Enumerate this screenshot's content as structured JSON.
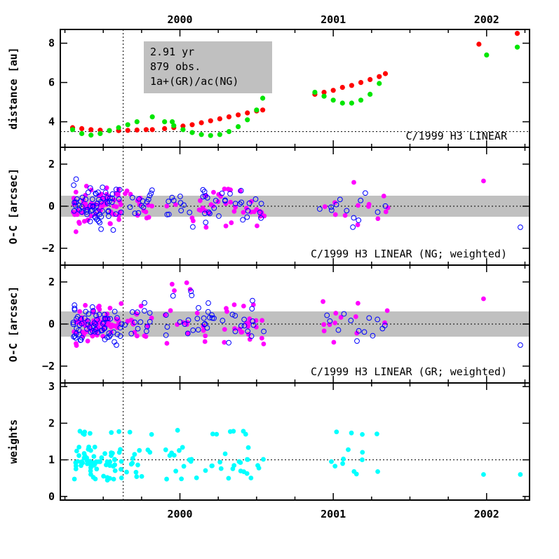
{
  "chart_data": [
    {
      "type": "scatter",
      "ylabel": "distance [au]",
      "ylim": [
        2.7,
        8.7
      ],
      "yticks": [
        4,
        6,
        8
      ],
      "reference_y": 3.5,
      "annotation": "C/1999 H3 LINEAR",
      "info_box": [
        "2.91 yr",
        "879 obs.",
        "1a+(GR)/ac(NG)"
      ],
      "info_box_color": "#c0c0c0",
      "series": [
        {
          "color": "#ff0000",
          "x": [
            1999.3,
            1999.36,
            1999.42,
            1999.48,
            1999.54,
            1999.6,
            1999.66,
            1999.72,
            1999.78,
            1999.82,
            1999.9,
            1999.96,
            2000.02,
            2000.08,
            2000.14,
            2000.2,
            2000.26,
            2000.32,
            2000.38,
            2000.44,
            2000.5,
            2000.54,
            2000.88,
            2000.94,
            2001.0,
            2001.06,
            2001.12,
            2001.18,
            2001.24,
            2001.3,
            2001.34,
            2001.95,
            2002.2
          ],
          "y": [
            3.7,
            3.65,
            3.6,
            3.57,
            3.55,
            3.55,
            3.56,
            3.58,
            3.6,
            3.6,
            3.65,
            3.7,
            3.78,
            3.85,
            3.95,
            4.05,
            4.15,
            4.25,
            4.35,
            4.45,
            4.55,
            4.6,
            5.4,
            5.5,
            5.6,
            5.75,
            5.85,
            6.0,
            6.15,
            6.3,
            6.45,
            7.95,
            8.5
          ]
        },
        {
          "color": "#00e600",
          "x": [
            1999.3,
            1999.36,
            1999.42,
            1999.48,
            1999.54,
            1999.6,
            1999.66,
            1999.72,
            1999.82,
            1999.9,
            1999.96,
            2000.02,
            2000.08,
            2000.14,
            2000.2,
            2000.26,
            2000.32,
            2000.38,
            2000.44,
            2000.5,
            2000.54,
            2000.88,
            2000.94,
            2001.0,
            2001.06,
            2001.12,
            2001.18,
            2001.24,
            2001.3,
            1999.95,
            2002.2
          ],
          "y": [
            3.6,
            3.4,
            3.32,
            3.4,
            3.55,
            3.7,
            3.85,
            4.0,
            4.25,
            4.0,
            3.8,
            3.6,
            3.45,
            3.35,
            3.3,
            3.35,
            3.5,
            3.75,
            4.1,
            4.6,
            5.2,
            5.5,
            5.3,
            5.1,
            4.95,
            4.95,
            5.1,
            5.4,
            5.95,
            4.0,
            7.8
          ]
        },
        {
          "color": "#00e600",
          "x": [
            2002.0
          ],
          "y": [
            7.4
          ]
        }
      ]
    },
    {
      "type": "scatter",
      "ylabel": "O-C [arcsec]",
      "ylim": [
        -2.8,
        2.8
      ],
      "yticks": [
        -2,
        0,
        2
      ],
      "band": [
        -0.5,
        0.5
      ],
      "annotation": "C/1999 H3 LINEAR  (NG; weighted)",
      "series": [
        {
          "marker": "filled",
          "color": "#ff00ff"
        },
        {
          "marker": "open",
          "color": "#0000ff"
        }
      ],
      "sample_seed": 11
    },
    {
      "type": "scatter",
      "ylabel": "O-C [arcsec]",
      "ylim": [
        -2.8,
        2.8
      ],
      "yticks": [
        -2,
        0,
        2
      ],
      "band": [
        -0.6,
        0.6
      ],
      "annotation": "C/1999 H3 LINEAR  (GR; weighted)",
      "series": [
        {
          "marker": "filled",
          "color": "#ff00ff"
        },
        {
          "marker": "open",
          "color": "#0000ff"
        }
      ],
      "sample_seed": 23
    },
    {
      "type": "scatter",
      "ylabel": "weights",
      "ylim": [
        -0.1,
        3.1
      ],
      "yticks": [
        0,
        1,
        2,
        3
      ],
      "reference_y": 1.0,
      "series": [
        {
          "marker": "filled",
          "color": "#00ffff"
        }
      ],
      "sample_seed": 37
    }
  ],
  "x_axis": {
    "range": [
      1999.22,
      2002.28
    ],
    "year_labels": [
      "2000",
      "2001",
      "2002"
    ],
    "year_values": [
      2000.0,
      2001.0,
      2002.0
    ],
    "vertical_marker": 1999.63
  }
}
